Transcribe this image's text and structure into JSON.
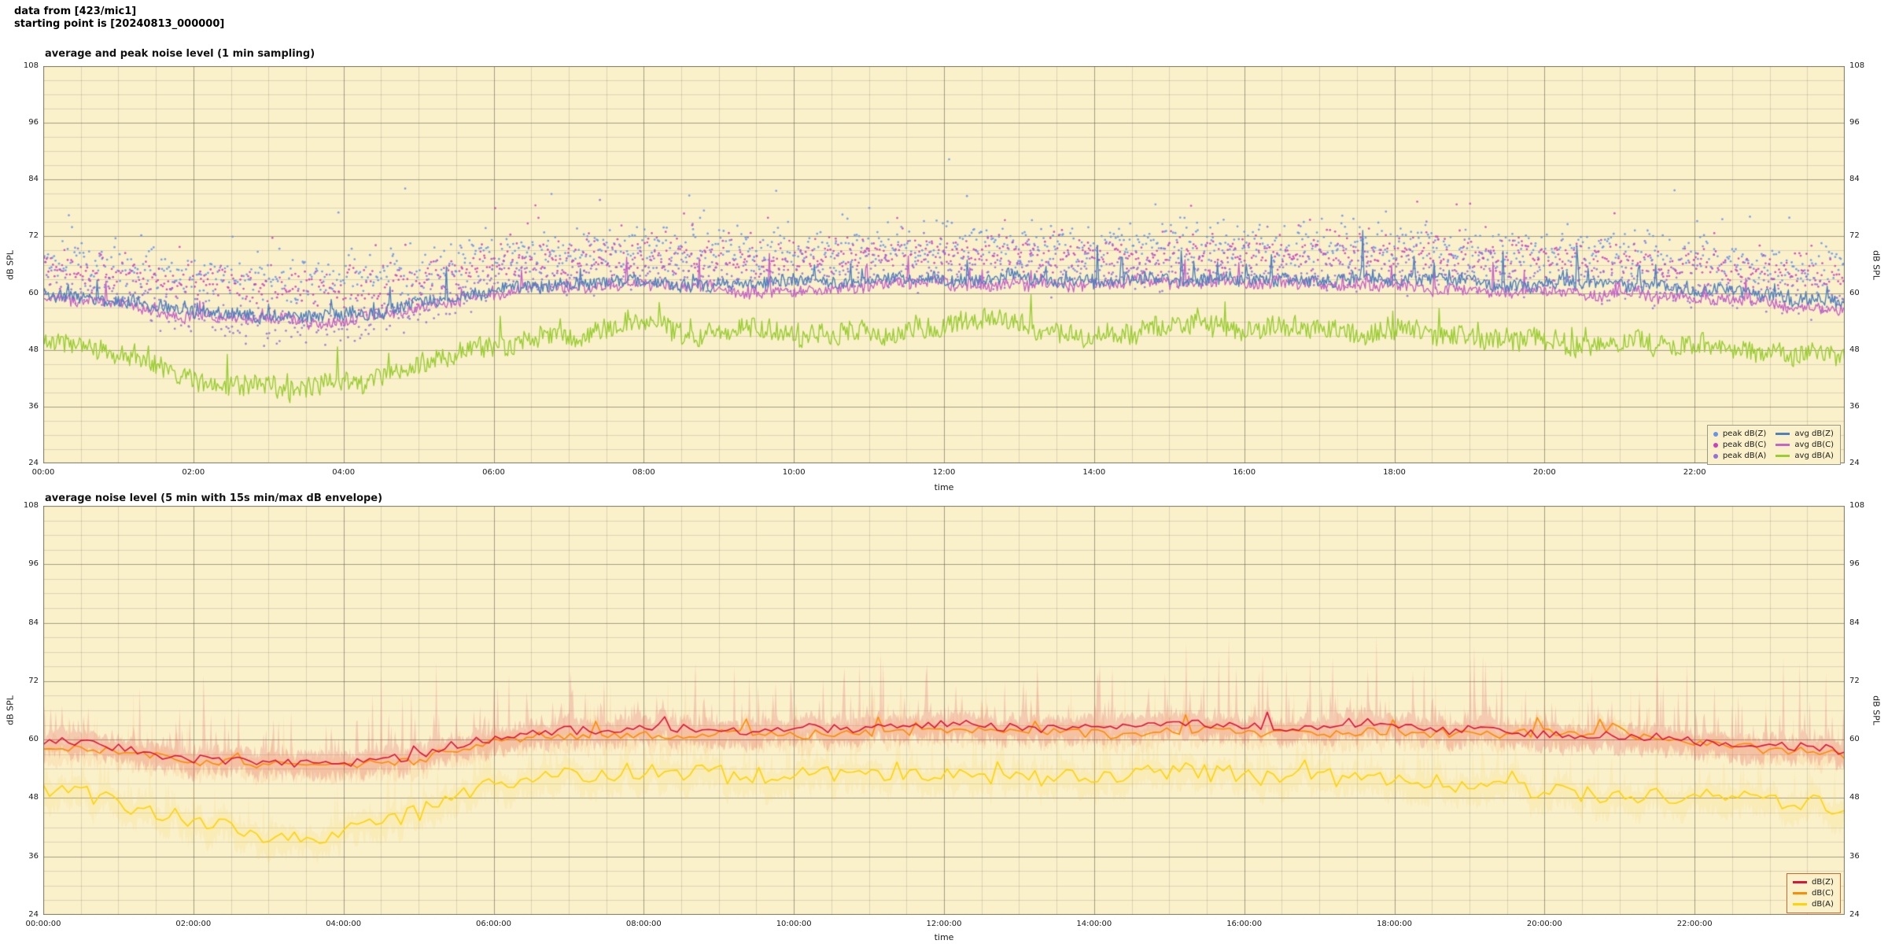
{
  "header": {
    "line1": "data from [423/mic1]",
    "line2": "starting point is [20240813_000000]"
  },
  "chart_data": [
    {
      "type": "line+scatter",
      "title": "average and peak noise level (1 min sampling)",
      "xlabel": "time",
      "ylabel_left": "dB SPL",
      "ylabel_right": "dB SPL",
      "ylim": [
        24,
        108
      ],
      "yticks": [
        24,
        36,
        48,
        60,
        72,
        84,
        96,
        108
      ],
      "xlim_hours": [
        0,
        24
      ],
      "xticks_hours": [
        0,
        2,
        4,
        6,
        8,
        10,
        12,
        14,
        16,
        18,
        20,
        22
      ],
      "xtick_labels": [
        "00:00",
        "02:00",
        "04:00",
        "06:00",
        "08:00",
        "10:00",
        "12:00",
        "14:00",
        "16:00",
        "18:00",
        "20:00",
        "22:00"
      ],
      "minor_x_step_hours": 0.5,
      "minor_y_step_db": 3,
      "samples": 1440,
      "plot_bg": "#FAF1CB",
      "grid_major": "rgba(105,100,80,0.5)",
      "grid_minor": "rgba(105,100,80,0.2)",
      "frame_color": "#7d7860",
      "scatter_series": [
        {
          "name": "peak dB(Z)",
          "color": "#6495ED",
          "seed": 41,
          "count": 1200,
          "spread": 3.2,
          "outlier_p": 0.09,
          "outlier_amp": 16,
          "trend_db_by_hour": [
            67,
            65.5,
            63.5,
            62.5,
            62.5,
            64.5,
            68,
            69,
            69.5,
            69,
            69,
            69.5,
            70,
            70,
            69.5,
            70.5,
            70,
            70,
            70,
            69.5,
            69,
            68.5,
            67.5,
            66.5,
            65
          ]
        },
        {
          "name": "peak dB(C)",
          "color": "#CC3FC0",
          "seed": 42,
          "count": 1200,
          "spread": 3.0,
          "outlier_p": 0.08,
          "outlier_amp": 14,
          "trend_db_by_hour": [
            65.5,
            63.8,
            61.8,
            60.8,
            60.8,
            62.8,
            66.5,
            67.5,
            67.9,
            67.5,
            67.5,
            67.9,
            68.5,
            68.5,
            68,
            68.7,
            68.3,
            68.3,
            68.3,
            67.8,
            67.3,
            66.7,
            65.7,
            64.7,
            63.3
          ]
        },
        {
          "name": "peak dB(A)",
          "color": "#9370DB",
          "seed": 43,
          "count": 1200,
          "spread": 3.0,
          "outlier_p": 0.06,
          "outlier_amp": 11,
          "trend_db_by_hour": [
            62.5,
            59.5,
            55.5,
            53,
            53,
            56.5,
            62.5,
            64.5,
            65,
            64,
            63.5,
            64.5,
            65,
            64.5,
            64.5,
            65.5,
            65,
            64.5,
            64.5,
            64,
            63,
            62,
            61,
            60,
            58.5
          ]
        }
      ],
      "line_series": [
        {
          "name": "avg dB(A)",
          "color": "#9ACD32",
          "width": 1.4,
          "seed": 31,
          "noise": 2.2,
          "wander": 0.9,
          "spike_p": 0.05,
          "spike_amp": 8,
          "trend_db_by_hour": [
            50,
            47,
            43,
            40.5,
            40.5,
            44,
            50,
            52,
            52.5,
            51.5,
            51,
            52,
            52.5,
            52,
            52,
            53,
            52.5,
            52,
            52,
            51.5,
            50.5,
            49.5,
            48.5,
            47.5,
            46
          ]
        },
        {
          "name": "avg dB(C)",
          "color": "#C864C8",
          "width": 1.4,
          "seed": 21,
          "noise": 1.2,
          "wander": 0.5,
          "spike_p": 0.05,
          "spike_amp": 8,
          "trend_db_by_hour": [
            59,
            57.3,
            55.3,
            54.3,
            54.3,
            56.3,
            60,
            61,
            61.4,
            61,
            61,
            61.4,
            62,
            62,
            61.5,
            62.2,
            61.8,
            61.8,
            61.8,
            61.3,
            60.8,
            60.2,
            59.2,
            58.2,
            56.8
          ]
        },
        {
          "name": "avg dB(Z)",
          "color": "#4F81BD",
          "width": 1.4,
          "seed": 11,
          "noise": 1.3,
          "wander": 0.5,
          "spike_p": 0.06,
          "spike_amp": 9,
          "trend_db_by_hour": [
            60,
            58.5,
            56.5,
            55.5,
            55.5,
            57.5,
            61,
            62,
            62.5,
            62,
            62,
            62.5,
            63,
            63,
            62.5,
            63.5,
            63,
            63,
            63,
            62.5,
            62,
            61.5,
            60.5,
            59.5,
            58
          ]
        }
      ],
      "legend": {
        "border": "#999988",
        "columns": [
          [
            {
              "label": "peak dB(Z)",
              "color": "#6495ED",
              "marker": "dot"
            },
            {
              "label": "peak dB(C)",
              "color": "#CC3FC0",
              "marker": "dot"
            },
            {
              "label": "peak dB(A)",
              "color": "#9370DB",
              "marker": "dot"
            }
          ],
          [
            {
              "label": "avg dB(Z)",
              "color": "#4F81BD",
              "marker": "line"
            },
            {
              "label": "avg dB(C)",
              "color": "#C864C8",
              "marker": "line"
            },
            {
              "label": "avg dB(A)",
              "color": "#9ACD32",
              "marker": "line"
            }
          ]
        ]
      }
    },
    {
      "type": "line+envelope",
      "title": "average noise level (5 min with 15s min/max dB envelope)",
      "xlabel": "time",
      "ylabel_left": "dB SPL",
      "ylabel_right": "dB SPL",
      "ylim": [
        24,
        108
      ],
      "yticks": [
        24,
        36,
        48,
        60,
        72,
        84,
        96,
        108
      ],
      "xlim_hours": [
        0,
        24
      ],
      "xticks_hours": [
        0,
        2,
        4,
        6,
        8,
        10,
        12,
        14,
        16,
        18,
        20,
        22
      ],
      "xtick_labels": [
        "00:00:00",
        "02:00:00",
        "04:00:00",
        "06:00:00",
        "08:00:00",
        "10:00:00",
        "12:00:00",
        "14:00:00",
        "16:00:00",
        "18:00:00",
        "20:00:00",
        "22:00:00"
      ],
      "minor_x_step_hours": 0.5,
      "minor_y_step_db": 3,
      "samples": 288,
      "envelope_samples": 1440,
      "plot_bg": "#FAF1CB",
      "grid_major": "rgba(105,100,80,0.5)",
      "grid_minor": "rgba(105,100,80,0.2)",
      "frame_color": "#7d7860",
      "line_series": [
        {
          "name": "dB(A)",
          "color": "#FFD400",
          "width": 1.6,
          "seed": 61,
          "noise": 1.8,
          "wander": 0.8,
          "spike_p": 0.05,
          "spike_amp": 6,
          "trend_db_by_hour": [
            50,
            47,
            43,
            40.5,
            40.5,
            44,
            50,
            52,
            52.5,
            51.5,
            51,
            52,
            52.5,
            52,
            52,
            53,
            52.5,
            52,
            52,
            51.5,
            50.5,
            49.5,
            48.5,
            47.5,
            46
          ],
          "envelope": {
            "color": "rgba(250,214,80,0.16)",
            "up": 2,
            "spike_p": 0.22,
            "spike_amp": 12,
            "down": 3.5
          }
        },
        {
          "name": "dB(C)",
          "color": "#FF8C00",
          "width": 1.6,
          "seed": 51,
          "noise": 0.9,
          "wander": 0.45,
          "spike_p": 0.04,
          "spike_amp": 5,
          "trend_db_by_hour": [
            59,
            57.3,
            55.3,
            54.3,
            54.3,
            56.3,
            60,
            61,
            61.4,
            61,
            61,
            61.4,
            62,
            62,
            61.5,
            62.2,
            61.8,
            61.8,
            61.8,
            61.3,
            60.8,
            60.2,
            59.2,
            58.2,
            56.8
          ],
          "envelope": {
            "color": "rgba(255,150,70,0.13)",
            "up": 1.6,
            "spike_p": 0.2,
            "spike_amp": 12,
            "down": 3
          }
        },
        {
          "name": "dB(Z)",
          "color": "#DC143C",
          "width": 1.6,
          "seed": 52,
          "noise": 0.9,
          "wander": 0.45,
          "spike_p": 0.04,
          "spike_amp": 6,
          "trend_db_by_hour": [
            60,
            58.5,
            56.5,
            55.5,
            55.5,
            57.5,
            61,
            62,
            62.5,
            62,
            62,
            62.5,
            63,
            63,
            62.5,
            63.5,
            63,
            63,
            63,
            62.5,
            62,
            61.5,
            60.5,
            59.5,
            58
          ],
          "envelope": {
            "color": "rgba(225,70,85,0.22)",
            "up": 2,
            "spike_p": 0.28,
            "spike_amp": 17,
            "down": 3
          }
        }
      ],
      "legend": {
        "border": "#CC6633",
        "columns": [
          [
            {
              "label": "dB(Z)",
              "color": "#DC143C",
              "marker": "line"
            },
            {
              "label": "dB(C)",
              "color": "#FF8C00",
              "marker": "line"
            },
            {
              "label": "dB(A)",
              "color": "#FFD400",
              "marker": "line"
            }
          ]
        ]
      }
    }
  ]
}
